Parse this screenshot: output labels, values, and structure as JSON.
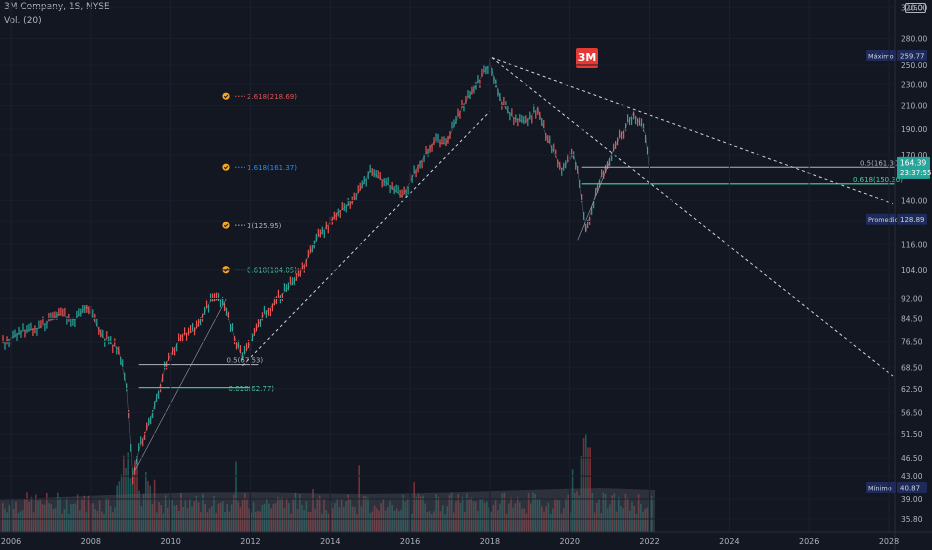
{
  "header": {
    "title": "3M Company, 1S, NYSE",
    "indicator": "Vol. (20)"
  },
  "logo_text": "3M",
  "currency": "USD",
  "colors": {
    "background": "#131722",
    "up": "#26a69a",
    "down": "#ef5350",
    "fib_green": "#4cd3a5",
    "fib_white": "#b2b5be",
    "fib_red": "#e05555",
    "fib_blue": "#2a8ef5",
    "check": "#f5a623",
    "price_tag": "#26a69a",
    "label_tag": "#1e2a5a"
  },
  "chart_data": {
    "type": "line",
    "xlabel": "",
    "ylabel": "",
    "x_ticks": [
      "2006",
      "2008",
      "2010",
      "2012",
      "2014",
      "2016",
      "2018",
      "2020",
      "2022",
      "2024",
      "2026",
      "2028"
    ],
    "y_ticks": [
      "320.00",
      "280.00",
      "250.00",
      "230.00",
      "210.00",
      "190.00",
      "170.00",
      "140.00",
      "128.00",
      "116.00",
      "104.00",
      "92.00",
      "84.50",
      "76.50",
      "68.50",
      "62.50",
      "56.50",
      "51.50",
      "46.50",
      "43.00",
      "39.00",
      "35.80"
    ],
    "y_scale": "log",
    "x_range": [
      2005.8,
      2028.5
    ],
    "series": [
      {
        "x": [
          2005.8,
          2006.3,
          2006.7,
          2007.2,
          2007.6,
          2007.9,
          2008.3,
          2008.7,
          2008.9,
          2009.05,
          2009.2,
          2009.5,
          2009.9,
          2010.3,
          2010.6,
          2011.0,
          2011.3,
          2011.5,
          2011.8,
          2012.3,
          2012.7,
          2013.2,
          2013.7,
          2014.2,
          2014.6,
          2015.0,
          2015.4,
          2015.8,
          2016.2,
          2016.6,
          2016.9,
          2017.3,
          2017.7,
          2018.0,
          2018.3,
          2018.6,
          2018.9,
          2019.2,
          2019.4,
          2019.8,
          2020.1,
          2020.2,
          2020.4,
          2020.7,
          2021.0,
          2021.3,
          2021.6,
          2021.9,
          2022.0
        ],
        "values": [
          76,
          80,
          81,
          86,
          84,
          89,
          78,
          74,
          63,
          43,
          48,
          55,
          70,
          79,
          80,
          91,
          92,
          82,
          71,
          85,
          92,
          101,
          120,
          133,
          140,
          159,
          151,
          142,
          162,
          180,
          178,
          208,
          232,
          252,
          212,
          199,
          196,
          208,
          185,
          160,
          170,
          160,
          122,
          150,
          168,
          186,
          204,
          186,
          160
        ]
      }
    ],
    "annotations": {
      "fib_left": [
        "2.618(218.69)",
        "1.618(161.37)",
        "1(125.95)",
        "0.618(104.05)",
        "0.5(67.53)",
        "0.618(62.77)"
      ],
      "fib_right": [
        "0.5(161.30)",
        "0.618(150.30)"
      ],
      "price_labels": [
        {
          "text": "Máximo",
          "value": "259.77"
        },
        {
          "text": "Promedio",
          "value": "128.89"
        },
        {
          "text": "Mínimo",
          "value": "40.87"
        }
      ],
      "last_price": "164.39",
      "countdown": "23:37:55"
    }
  }
}
